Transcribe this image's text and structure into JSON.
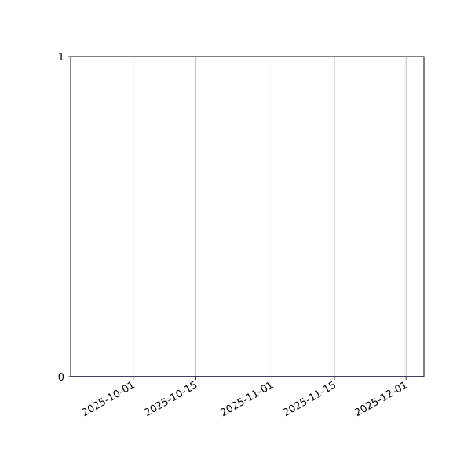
{
  "chart_data": {
    "type": "line",
    "title": "",
    "xlabel": "",
    "ylabel": "",
    "x_axis_type": "date",
    "xlim": [
      "2025-09-17",
      "2025-12-05"
    ],
    "ylim": [
      0,
      1
    ],
    "x_ticks": [
      "2025-10-01",
      "2025-10-15",
      "2025-11-01",
      "2025-11-15",
      "2025-12-01"
    ],
    "y_ticks": [
      "0",
      "1"
    ],
    "grid": "vertical",
    "series": [
      {
        "x": [
          "2025-09-17",
          "2025-12-05"
        ],
        "y": [
          0,
          0
        ],
        "color": "#00008b"
      }
    ],
    "colors": {
      "grid": "#b0b0b0",
      "axes": "#000000",
      "line": "#00008b"
    }
  }
}
